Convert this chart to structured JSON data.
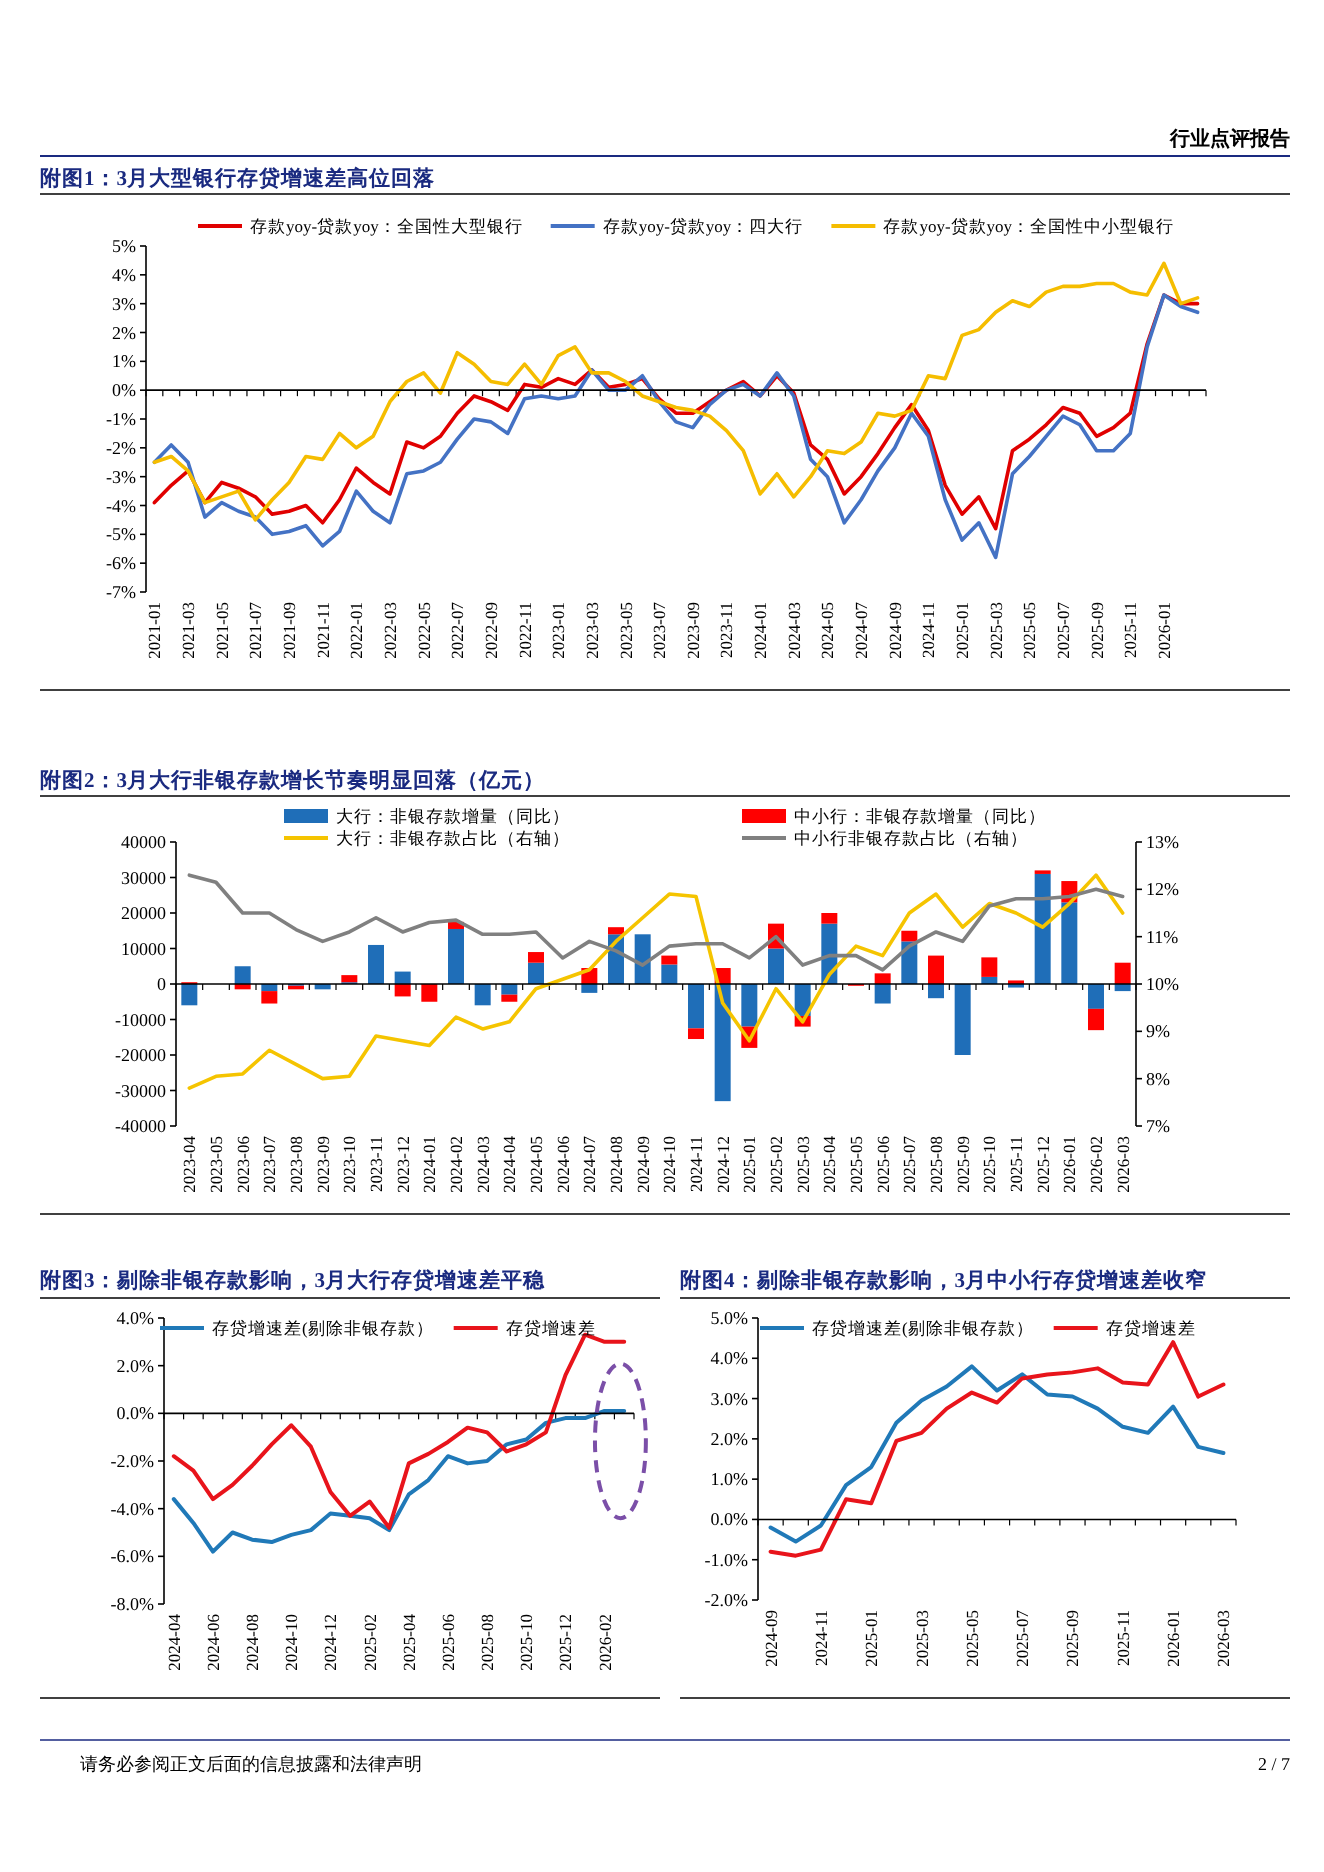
{
  "chart_data": [
    {
      "type": "line",
      "title": "附图1：3月大型银行存贷增速差高位回落",
      "annotations": [
        "行业点评报告"
      ],
      "legend": "top",
      "grid": false,
      "ref_lines": [
        {
          "axis": "y",
          "value": 0
        }
      ],
      "marker": "none",
      "line_style": "solid",
      "categories": [
        "2021-01",
        null,
        "2021-03",
        null,
        "2021-05",
        null,
        "2021-07",
        null,
        "2021-09",
        null,
        "2021-11",
        null,
        "2022-01",
        null,
        "2022-03",
        null,
        "2022-05",
        null,
        "2022-07",
        null,
        "2022-09",
        null,
        "2022-11",
        null,
        "2023-01",
        null,
        "2023-03",
        null,
        "2023-05",
        null,
        "2023-07",
        null,
        "2023-09",
        null,
        "2023-11",
        null,
        "2024-01",
        null,
        "2024-03",
        null,
        "2024-05",
        null,
        "2024-07",
        null,
        "2024-09",
        null,
        "2024-11",
        null,
        "2025-01",
        null,
        "2025-03",
        null,
        "2025-05",
        null,
        "2025-07",
        null,
        "2025-09",
        null,
        "2025-11",
        null,
        "2026-01",
        null,
        null
      ],
      "ylim": [
        -7,
        5
      ],
      "yticks": [
        {
          "value": -7,
          "label": "-7%"
        },
        {
          "value": -6,
          "label": "-6%"
        },
        {
          "value": -5,
          "label": "-5%"
        },
        {
          "value": -4,
          "label": "-4%"
        },
        {
          "value": -3,
          "label": "-3%"
        },
        {
          "value": -2,
          "label": "-2%"
        },
        {
          "value": -1,
          "label": "-1%"
        },
        {
          "value": 0,
          "label": "0%"
        },
        {
          "value": 1,
          "label": "1%"
        },
        {
          "value": 2,
          "label": "2%"
        },
        {
          "value": 3,
          "label": "3%"
        },
        {
          "value": 4,
          "label": "4%"
        },
        {
          "value": 5,
          "label": "5%"
        }
      ],
      "series": [
        {
          "name": "存款yoy-贷款yoy：全国性大型银行",
          "color": "#e00000",
          "values": [
            -3.9,
            -3.3,
            -2.8,
            -3.9,
            -3.2,
            -3.4,
            -3.7,
            -4.3,
            -4.2,
            -4.0,
            -4.6,
            -3.8,
            -2.7,
            -3.2,
            -3.6,
            -1.8,
            -2.0,
            -1.6,
            -0.8,
            -0.2,
            -0.4,
            -0.7,
            0.2,
            0.1,
            0.4,
            0.2,
            0.7,
            0.1,
            0.2,
            0.4,
            -0.3,
            -0.8,
            -0.8,
            -0.4,
            0.0,
            0.3,
            -0.2,
            0.5,
            -0.1,
            -1.9,
            -2.4,
            -3.6,
            -3.0,
            -2.2,
            -1.3,
            -0.5,
            -1.4,
            -3.3,
            -4.3,
            -3.7,
            -4.8,
            -2.1,
            -1.7,
            -1.2,
            -0.6,
            -0.8,
            -1.6,
            -1.3,
            -0.8,
            1.6,
            3.3,
            3.0,
            3.0
          ]
        },
        {
          "name": "存款yoy-贷款yoy：四大行",
          "color": "#4472c4",
          "values": [
            -2.5,
            -1.9,
            -2.5,
            -4.4,
            -3.9,
            -4.2,
            -4.4,
            -5.0,
            -4.9,
            -4.7,
            -5.4,
            -4.9,
            -3.5,
            -4.2,
            -4.6,
            -2.9,
            -2.8,
            -2.5,
            -1.7,
            -1.0,
            -1.1,
            -1.5,
            -0.3,
            -0.2,
            -0.3,
            -0.2,
            0.7,
            0.0,
            0.0,
            0.5,
            -0.4,
            -1.1,
            -1.3,
            -0.5,
            0.0,
            0.2,
            -0.2,
            0.6,
            -0.2,
            -2.4,
            -3.0,
            -4.6,
            -3.8,
            -2.8,
            -2.0,
            -0.8,
            -1.6,
            -3.8,
            -5.2,
            -4.6,
            -5.8,
            -2.9,
            -2.3,
            -1.6,
            -0.9,
            -1.2,
            -2.1,
            -2.1,
            -1.5,
            1.5,
            3.3,
            2.9,
            2.7
          ]
        },
        {
          "name": "存款yoy-贷款yoy：全国性中小型银行",
          "color": "#f5bd00",
          "values": [
            -2.5,
            -2.3,
            -2.8,
            -3.9,
            -3.7,
            -3.5,
            -4.5,
            -3.8,
            -3.2,
            -2.3,
            -2.4,
            -1.5,
            -2.0,
            -1.6,
            -0.4,
            0.3,
            0.6,
            -0.1,
            1.3,
            0.9,
            0.3,
            0.2,
            0.9,
            0.2,
            1.2,
            1.5,
            0.6,
            0.6,
            0.3,
            -0.2,
            -0.4,
            -0.6,
            -0.7,
            -0.9,
            -1.4,
            -2.1,
            -3.6,
            -2.9,
            -3.7,
            -3.0,
            -2.1,
            -2.2,
            -1.8,
            -0.8,
            -0.9,
            -0.7,
            0.5,
            0.4,
            1.9,
            2.1,
            2.7,
            3.1,
            2.9,
            3.4,
            3.6,
            3.6,
            3.7,
            3.7,
            3.4,
            3.3,
            4.4,
            3.0,
            3.2
          ]
        }
      ]
    },
    {
      "type": "bar",
      "stacked": true,
      "title": "附图2：3月大行非银存款增长节奏明显回落（亿元）",
      "legend": "top",
      "grid": false,
      "ref_lines": [
        {
          "axis": "y",
          "value": 0
        }
      ],
      "categories": [
        "2023-04",
        "2023-05",
        "2023-06",
        "2023-07",
        "2023-08",
        "2023-09",
        "2023-10",
        "2023-11",
        "2023-12",
        "2024-01",
        "2024-02",
        "2024-03",
        "2024-04",
        "2024-05",
        "2024-06",
        "2024-07",
        "2024-08",
        "2024-09",
        "2024-10",
        "2024-11",
        "2024-12",
        "2025-01",
        "2025-02",
        "2025-03",
        "2025-04",
        "2025-05",
        "2025-06",
        "2025-07",
        "2025-08",
        "2025-09",
        "2025-10",
        "2025-11",
        "2025-12",
        "2026-01",
        "2026-02",
        "2026-03"
      ],
      "ylim": [
        -40000,
        40000
      ],
      "yticks": [
        -40000,
        -30000,
        -20000,
        -10000,
        0,
        10000,
        20000,
        30000,
        40000
      ],
      "y2lim": [
        7,
        13
      ],
      "y2ticks": [
        {
          "value": 7,
          "label": "7%"
        },
        {
          "value": 8,
          "label": "8%"
        },
        {
          "value": 9,
          "label": "9%"
        },
        {
          "value": 10,
          "label": "10%"
        },
        {
          "value": 11,
          "label": "11%"
        },
        {
          "value": 12,
          "label": "12%"
        },
        {
          "value": 13,
          "label": "13%"
        }
      ],
      "series": [
        {
          "name": "大行：非银存款增量（同比）",
          "type": "bar",
          "color": "#1f6eb8",
          "values": [
            -6000,
            null,
            5000,
            -2000,
            -500,
            -1500,
            500,
            11000,
            3500,
            null,
            15500,
            -6000,
            -3000,
            6000,
            null,
            -2500,
            14000,
            14000,
            5500,
            -12500,
            -33000,
            -12000,
            10000,
            -9000,
            17000,
            null,
            -5500,
            12000,
            -4000,
            -20000,
            2000,
            -1000,
            31000,
            23000,
            -7000,
            -2000
          ]
        },
        {
          "name": "中小行：非银存款增量（同比）",
          "type": "bar",
          "color": "#ff0000",
          "values": [
            500,
            null,
            -1500,
            -3500,
            -1000,
            null,
            2000,
            null,
            -3500,
            -5000,
            2000,
            null,
            -2000,
            3000,
            null,
            4500,
            2000,
            null,
            2500,
            -3000,
            4500,
            -6000,
            7000,
            -3000,
            3000,
            -500,
            3000,
            3000,
            8000,
            null,
            5500,
            1000,
            1000,
            6000,
            -6000,
            6000
          ]
        },
        {
          "name": "大行：非银存款占比（右轴）",
          "type": "line",
          "axis": "y2",
          "color": "#f5c400",
          "values": [
            7.8,
            8.05,
            8.1,
            8.6,
            8.3,
            8.0,
            8.05,
            8.9,
            8.8,
            8.7,
            9.3,
            9.05,
            9.2,
            9.9,
            10.1,
            10.3,
            10.9,
            11.4,
            11.9,
            11.85,
            9.6,
            8.8,
            9.9,
            9.2,
            10.2,
            10.8,
            10.6,
            11.5,
            11.9,
            11.2,
            11.7,
            11.5,
            11.2,
            11.7,
            12.3,
            11.5
          ]
        },
        {
          "name": "中小行非银存款占比（右轴）",
          "type": "line",
          "axis": "y2",
          "color": "#808080",
          "values": [
            12.3,
            12.15,
            11.5,
            11.5,
            11.15,
            10.9,
            11.1,
            11.4,
            11.1,
            11.3,
            11.35,
            11.05,
            11.05,
            11.1,
            10.55,
            10.9,
            10.7,
            10.4,
            10.8,
            10.85,
            10.85,
            10.55,
            11.0,
            10.4,
            10.6,
            10.6,
            10.3,
            10.8,
            11.1,
            10.9,
            11.65,
            11.8,
            11.8,
            11.85,
            12.0,
            11.85
          ]
        }
      ]
    },
    {
      "type": "line",
      "title": "附图3：剔除非银存款影响，3月大行存贷增速差平稳",
      "legend": "top",
      "grid": false,
      "ref_lines": [
        {
          "axis": "y",
          "value": 0
        }
      ],
      "marker": "none",
      "line_style": "solid",
      "categories": [
        "2024-04",
        null,
        "2024-06",
        null,
        "2024-08",
        null,
        "2024-10",
        null,
        "2024-12",
        null,
        "2025-02",
        null,
        "2025-04",
        null,
        "2025-06",
        null,
        "2025-08",
        null,
        "2025-10",
        null,
        "2025-12",
        null,
        "2026-02",
        null
      ],
      "ylim": [
        -8,
        4
      ],
      "yticks": [
        {
          "value": -8,
          "label": "-8.0%"
        },
        {
          "value": -6,
          "label": "-6.0%"
        },
        {
          "value": -4,
          "label": "-4.0%"
        },
        {
          "value": -2,
          "label": "-2.0%"
        },
        {
          "value": 0,
          "label": "0.0%"
        },
        {
          "value": 2,
          "label": "2.0%"
        },
        {
          "value": 4,
          "label": "4.0%"
        }
      ],
      "series": [
        {
          "name": "存贷增速差(剔除非银存款）",
          "color": "#2079b8",
          "values": [
            -3.6,
            -4.6,
            -5.8,
            -5.0,
            -5.3,
            -5.4,
            -5.1,
            -4.9,
            -4.2,
            -4.3,
            -4.4,
            -4.9,
            -3.4,
            -2.8,
            -1.8,
            -2.1,
            -2.0,
            -1.3,
            -1.1,
            -0.4,
            -0.2,
            -0.2,
            0.1,
            0.1
          ]
        },
        {
          "name": "存贷增速差",
          "color": "#e8141b",
          "values": [
            -1.8,
            -2.4,
            -3.6,
            -3.0,
            -2.2,
            -1.3,
            -0.5,
            -1.4,
            -3.3,
            -4.3,
            -3.7,
            -4.8,
            -2.1,
            -1.7,
            -1.2,
            -0.6,
            -0.8,
            -1.6,
            -1.3,
            -0.8,
            1.6,
            3.3,
            3.0,
            3.0
          ]
        }
      ]
    },
    {
      "type": "line",
      "title": "附图4：剔除非银存款影响，3月中小行存贷增速差收窄",
      "annotations": [
        "请务必参阅正文后面的信息披露和法律声明",
        "2 / 7"
      ],
      "legend": "top",
      "grid": false,
      "ref_lines": [
        {
          "axis": "y",
          "value": 0
        }
      ],
      "marker": "none",
      "line_style": "solid",
      "categories": [
        "2024-09",
        null,
        "2024-11",
        null,
        "2025-01",
        null,
        "2025-03",
        null,
        "2025-05",
        null,
        "2025-07",
        null,
        "2025-09",
        null,
        "2025-11",
        null,
        "2026-01",
        null,
        "2026-03"
      ],
      "ylim": [
        -2,
        5
      ],
      "yticks": [
        {
          "value": -2,
          "label": "-2.0%"
        },
        {
          "value": -1,
          "label": "-1.0%"
        },
        {
          "value": 0,
          "label": "0.0%"
        },
        {
          "value": 1,
          "label": "1.0%"
        },
        {
          "value": 2,
          "label": "2.0%"
        },
        {
          "value": 3,
          "label": "3.0%"
        },
        {
          "value": 4,
          "label": "4.0%"
        },
        {
          "value": 5,
          "label": "5.0%"
        }
      ],
      "series": [
        {
          "name": "存贷增速差(剔除非银存款）",
          "color": "#2079b8",
          "values": [
            -0.2,
            -0.55,
            -0.15,
            0.85,
            1.3,
            2.4,
            2.95,
            3.3,
            3.8,
            3.2,
            3.6,
            3.1,
            3.05,
            2.75,
            2.3,
            2.15,
            2.8,
            1.8,
            1.65
          ]
        },
        {
          "name": "存贷增速差",
          "color": "#e8141b",
          "values": [
            -0.8,
            -0.9,
            -0.75,
            0.5,
            0.4,
            1.95,
            2.15,
            2.75,
            3.15,
            2.9,
            3.5,
            3.6,
            3.65,
            3.75,
            3.4,
            3.35,
            4.4,
            3.05,
            3.35
          ]
        }
      ]
    }
  ]
}
